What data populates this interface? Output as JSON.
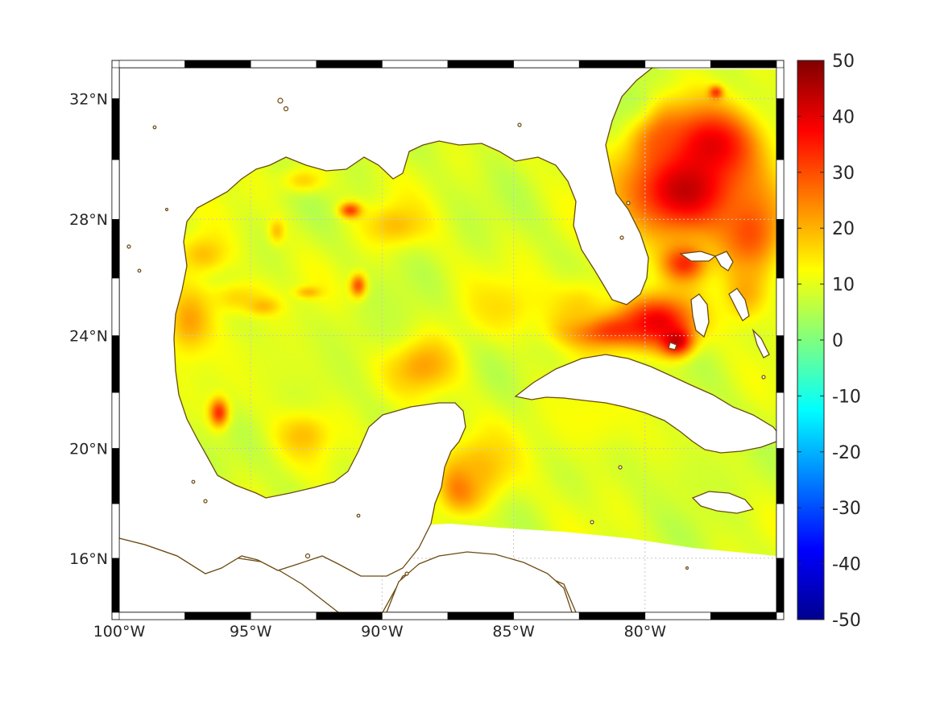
{
  "chart_data": {
    "type": "heatmap",
    "projection": "Mercator",
    "region": "Gulf of Mexico and northwestern Caribbean",
    "lon_range": [
      -100,
      -75
    ],
    "lat_range": [
      14,
      33
    ],
    "x_ticks": [
      {
        "value": -100,
        "label": "100°W"
      },
      {
        "value": -95,
        "label": "95°W"
      },
      {
        "value": -90,
        "label": "90°W"
      },
      {
        "value": -85,
        "label": "85°W"
      },
      {
        "value": -80,
        "label": "80°W"
      }
    ],
    "y_ticks": [
      {
        "value": 16,
        "label": "16°N"
      },
      {
        "value": 20,
        "label": "20°N"
      },
      {
        "value": 24,
        "label": "24°N"
      },
      {
        "value": 28,
        "label": "28°N"
      },
      {
        "value": 32,
        "label": "32°N"
      }
    ],
    "grid": true,
    "colormap": "jet",
    "colorbar": {
      "placement": "right",
      "range": [
        -50,
        50
      ],
      "ticks": [
        {
          "value": 50,
          "label": "50"
        },
        {
          "value": 40,
          "label": "40"
        },
        {
          "value": 30,
          "label": "30"
        },
        {
          "value": 20,
          "label": "20"
        },
        {
          "value": 10,
          "label": "10"
        },
        {
          "value": 0,
          "label": "0"
        },
        {
          "value": -10,
          "label": "-10"
        },
        {
          "value": -20,
          "label": "-20"
        },
        {
          "value": -30,
          "label": "-30"
        },
        {
          "value": -40,
          "label": "-40"
        },
        {
          "value": -50,
          "label": "-50"
        }
      ]
    },
    "background_value": 9,
    "field_hotspots": [
      {
        "lon": -78.5,
        "lat": 29.0,
        "value": 48,
        "r_lon": 2.2,
        "r_lat": 1.6
      },
      {
        "lon": -77.5,
        "lat": 30.5,
        "value": 42,
        "r_lon": 1.8,
        "r_lat": 1.2
      },
      {
        "lon": -79.5,
        "lat": 30.8,
        "value": 30,
        "r_lon": 1.0,
        "r_lat": 1.0
      },
      {
        "lon": -76.0,
        "lat": 27.5,
        "value": 32,
        "r_lon": 1.2,
        "r_lat": 1.5
      },
      {
        "lon": -81.5,
        "lat": 24.2,
        "value": 38,
        "r_lon": 1.6,
        "r_lat": 0.6
      },
      {
        "lon": -79.5,
        "lat": 24.5,
        "value": 42,
        "r_lon": 1.4,
        "r_lat": 0.9
      },
      {
        "lon": -78.8,
        "lat": 23.8,
        "value": 46,
        "r_lon": 0.6,
        "r_lat": 0.5
      },
      {
        "lon": -78.5,
        "lat": 26.5,
        "value": 36,
        "r_lon": 0.8,
        "r_lat": 0.6
      },
      {
        "lon": -97.3,
        "lat": 24.5,
        "value": 24,
        "r_lon": 0.9,
        "r_lat": 1.2
      },
      {
        "lon": -96.2,
        "lat": 21.3,
        "value": 40,
        "r_lon": 0.35,
        "r_lat": 0.5
      },
      {
        "lon": -90.9,
        "lat": 25.7,
        "value": 40,
        "r_lon": 0.3,
        "r_lat": 0.4
      },
      {
        "lon": -91.2,
        "lat": 28.3,
        "value": 36,
        "r_lon": 0.4,
        "r_lat": 0.25
      },
      {
        "lon": -88.5,
        "lat": 23.0,
        "value": 24,
        "r_lon": 1.3,
        "r_lat": 1.0
      },
      {
        "lon": -87.0,
        "lat": 18.6,
        "value": 30,
        "r_lon": 0.8,
        "r_lat": 0.9
      },
      {
        "lon": -86.2,
        "lat": 19.3,
        "value": 20,
        "r_lon": 1.2,
        "r_lat": 1.2
      },
      {
        "lon": -96.8,
        "lat": 26.8,
        "value": 20,
        "r_lon": 1.0,
        "r_lat": 0.7
      },
      {
        "lon": -95.5,
        "lat": 25.3,
        "value": 18,
        "r_lon": 1.2,
        "r_lat": 0.6
      },
      {
        "lon": -92.8,
        "lat": 25.5,
        "value": 22,
        "r_lon": 0.5,
        "r_lat": 0.2
      },
      {
        "lon": -94.5,
        "lat": 25.0,
        "value": 22,
        "r_lon": 0.6,
        "r_lat": 0.3
      },
      {
        "lon": -93.0,
        "lat": 20.5,
        "value": 20,
        "r_lon": 1.0,
        "r_lat": 0.8
      },
      {
        "lon": -89.5,
        "lat": 27.8,
        "value": 20,
        "r_lon": 1.2,
        "r_lat": 0.7
      },
      {
        "lon": -93.0,
        "lat": 29.3,
        "value": 18,
        "r_lon": 0.8,
        "r_lat": 0.4
      },
      {
        "lon": -94.0,
        "lat": 27.6,
        "value": 20,
        "r_lon": 0.3,
        "r_lat": 0.4
      },
      {
        "lon": -85.5,
        "lat": 25.0,
        "value": 16,
        "r_lon": 1.5,
        "r_lat": 1.0
      },
      {
        "lon": -82.5,
        "lat": 25.0,
        "value": 18,
        "r_lon": 1.2,
        "r_lat": 1.0
      },
      {
        "lon": -82.0,
        "lat": 21.0,
        "value": 13,
        "r_lon": 2.0,
        "r_lat": 1.5
      },
      {
        "lon": -78.0,
        "lat": 19.0,
        "value": 8,
        "r_lon": 2.5,
        "r_lat": 1.5
      },
      {
        "lon": -90.0,
        "lat": 24.5,
        "value": 7,
        "r_lon": 1.5,
        "r_lat": 1.2
      },
      {
        "lon": -80.5,
        "lat": 32.0,
        "value": 5,
        "r_lon": 1.0,
        "r_lat": 1.0
      },
      {
        "lon": -94.0,
        "lat": 23.0,
        "value": 10,
        "r_lon": 2.5,
        "r_lat": 1.5
      },
      {
        "lon": -76.2,
        "lat": 25.5,
        "value": 22,
        "r_lon": 0.8,
        "r_lat": 1.0
      },
      {
        "lon": -77.3,
        "lat": 32.2,
        "value": 36,
        "r_lon": 0.25,
        "r_lat": 0.2
      }
    ],
    "colors": {
      "coastline": "#6b4a10",
      "grid": "#c8c8c8",
      "frame": "#262626",
      "land": "#ffffff"
    }
  }
}
